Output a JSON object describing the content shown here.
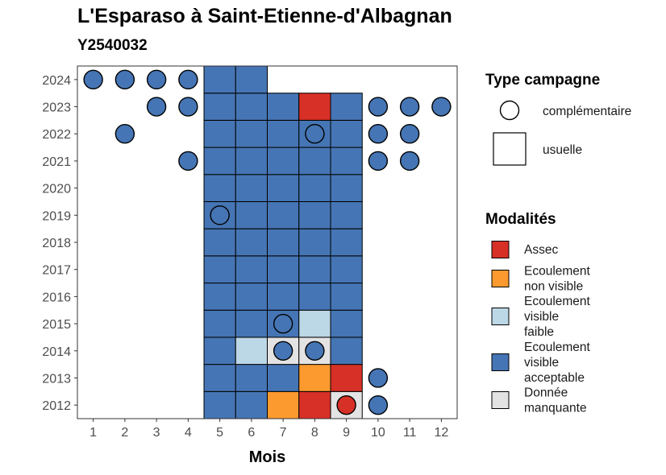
{
  "chart_data": {
    "type": "heatmap",
    "title": "L'Esparaso à Saint-Etienne-d'Albagnan",
    "subtitle": "Y2540032",
    "xlabel": "Mois",
    "ylabel": "",
    "x_ticks": [
      "1",
      "2",
      "3",
      "4",
      "5",
      "6",
      "7",
      "8",
      "9",
      "10",
      "11",
      "12"
    ],
    "y_ticks": [
      "2012",
      "2013",
      "2014",
      "2015",
      "2016",
      "2017",
      "2018",
      "2019",
      "2020",
      "2021",
      "2022",
      "2023",
      "2024"
    ],
    "xlim": [
      0.5,
      12.5
    ],
    "ylim": [
      2011.5,
      2024.5
    ],
    "colors": {
      "Assec": "#d73027",
      "Ecoulement non visible": "#fd9a2f",
      "Ecoulement visible faible": "#bcd7e6",
      "Ecoulement visible acceptable": "#4575b4",
      "Donnée manquante": "#e3e3e3"
    },
    "legend": {
      "type_title": "Type campagne",
      "types": [
        {
          "label": "complémentaire",
          "shape": "circle"
        },
        {
          "label": "usuelle",
          "shape": "square"
        }
      ],
      "mod_title": "Modalités",
      "modalites": [
        {
          "key": "Assec",
          "lines": [
            "Assec"
          ]
        },
        {
          "key": "Ecoulement non visible",
          "lines": [
            "Ecoulement",
            "non visible"
          ]
        },
        {
          "key": "Ecoulement visible faible",
          "lines": [
            "Ecoulement",
            "visible",
            "faible"
          ]
        },
        {
          "key": "Ecoulement visible acceptable",
          "lines": [
            "Ecoulement",
            "visible",
            "acceptable"
          ]
        },
        {
          "key": "Donnée manquante",
          "lines": [
            "Donnée",
            "manquante"
          ]
        }
      ]
    },
    "usuelle": [
      {
        "year": 2012,
        "months": {
          "5": "Ecoulement visible acceptable",
          "6": "Ecoulement visible acceptable",
          "7": "Ecoulement non visible",
          "8": "Assec",
          "9": "Donnée manquante"
        }
      },
      {
        "year": 2013,
        "months": {
          "5": "Ecoulement visible acceptable",
          "6": "Ecoulement visible acceptable",
          "7": "Ecoulement visible acceptable",
          "8": "Ecoulement non visible",
          "9": "Assec"
        }
      },
      {
        "year": 2014,
        "months": {
          "5": "Ecoulement visible acceptable",
          "6": "Ecoulement visible faible",
          "7": "Donnée manquante",
          "8": "Donnée manquante",
          "9": "Ecoulement visible acceptable"
        }
      },
      {
        "year": 2015,
        "months": {
          "5": "Ecoulement visible acceptable",
          "6": "Ecoulement visible acceptable",
          "7": "Ecoulement visible acceptable",
          "8": "Ecoulement visible faible",
          "9": "Ecoulement visible acceptable"
        }
      },
      {
        "year": 2016,
        "months": {
          "5": "Ecoulement visible acceptable",
          "6": "Ecoulement visible acceptable",
          "7": "Ecoulement visible acceptable",
          "8": "Ecoulement visible acceptable",
          "9": "Ecoulement visible acceptable"
        }
      },
      {
        "year": 2017,
        "months": {
          "5": "Ecoulement visible acceptable",
          "6": "Ecoulement visible acceptable",
          "7": "Ecoulement visible acceptable",
          "8": "Ecoulement visible acceptable",
          "9": "Ecoulement visible acceptable"
        }
      },
      {
        "year": 2018,
        "months": {
          "5": "Ecoulement visible acceptable",
          "6": "Ecoulement visible acceptable",
          "7": "Ecoulement visible acceptable",
          "8": "Ecoulement visible acceptable",
          "9": "Ecoulement visible acceptable"
        }
      },
      {
        "year": 2019,
        "months": {
          "5": "Ecoulement visible acceptable",
          "6": "Ecoulement visible acceptable",
          "7": "Ecoulement visible acceptable",
          "8": "Ecoulement visible acceptable",
          "9": "Ecoulement visible acceptable"
        }
      },
      {
        "year": 2020,
        "months": {
          "5": "Ecoulement visible acceptable",
          "6": "Ecoulement visible acceptable",
          "7": "Ecoulement visible acceptable",
          "8": "Ecoulement visible acceptable",
          "9": "Ecoulement visible acceptable"
        }
      },
      {
        "year": 2021,
        "months": {
          "5": "Ecoulement visible acceptable",
          "6": "Ecoulement visible acceptable",
          "7": "Ecoulement visible acceptable",
          "8": "Ecoulement visible acceptable",
          "9": "Ecoulement visible acceptable"
        }
      },
      {
        "year": 2022,
        "months": {
          "5": "Ecoulement visible acceptable",
          "6": "Ecoulement visible acceptable",
          "7": "Ecoulement visible acceptable",
          "8": "Ecoulement visible acceptable",
          "9": "Ecoulement visible acceptable"
        }
      },
      {
        "year": 2023,
        "months": {
          "5": "Ecoulement visible acceptable",
          "6": "Ecoulement visible acceptable",
          "7": "Ecoulement visible acceptable",
          "8": "Assec",
          "9": "Ecoulement visible acceptable"
        }
      },
      {
        "year": 2024,
        "months": {
          "5": "Ecoulement visible acceptable",
          "6": "Ecoulement visible acceptable"
        }
      }
    ],
    "complementaire": [
      {
        "year": 2012,
        "month": 9,
        "value": "Assec"
      },
      {
        "year": 2012,
        "month": 10,
        "value": "Ecoulement visible acceptable"
      },
      {
        "year": 2013,
        "month": 10,
        "value": "Ecoulement visible acceptable"
      },
      {
        "year": 2014,
        "month": 7,
        "value": "Ecoulement visible acceptable"
      },
      {
        "year": 2014,
        "month": 8,
        "value": "Ecoulement visible acceptable"
      },
      {
        "year": 2015,
        "month": 7,
        "value": "Ecoulement visible acceptable"
      },
      {
        "year": 2019,
        "month": 5,
        "value": "Ecoulement visible acceptable"
      },
      {
        "year": 2021,
        "month": 4,
        "value": "Ecoulement visible acceptable"
      },
      {
        "year": 2021,
        "month": 10,
        "value": "Ecoulement visible acceptable"
      },
      {
        "year": 2021,
        "month": 11,
        "value": "Ecoulement visible acceptable"
      },
      {
        "year": 2022,
        "month": 2,
        "value": "Ecoulement visible acceptable"
      },
      {
        "year": 2022,
        "month": 8,
        "value": "Ecoulement visible acceptable"
      },
      {
        "year": 2022,
        "month": 10,
        "value": "Ecoulement visible acceptable"
      },
      {
        "year": 2022,
        "month": 11,
        "value": "Ecoulement visible acceptable"
      },
      {
        "year": 2023,
        "month": 3,
        "value": "Ecoulement visible acceptable"
      },
      {
        "year": 2023,
        "month": 4,
        "value": "Ecoulement visible acceptable"
      },
      {
        "year": 2023,
        "month": 10,
        "value": "Ecoulement visible acceptable"
      },
      {
        "year": 2023,
        "month": 11,
        "value": "Ecoulement visible acceptable"
      },
      {
        "year": 2023,
        "month": 12,
        "value": "Ecoulement visible acceptable"
      },
      {
        "year": 2024,
        "month": 1,
        "value": "Ecoulement visible acceptable"
      },
      {
        "year": 2024,
        "month": 2,
        "value": "Ecoulement visible acceptable"
      },
      {
        "year": 2024,
        "month": 3,
        "value": "Ecoulement visible acceptable"
      },
      {
        "year": 2024,
        "month": 4,
        "value": "Ecoulement visible acceptable"
      }
    ]
  }
}
